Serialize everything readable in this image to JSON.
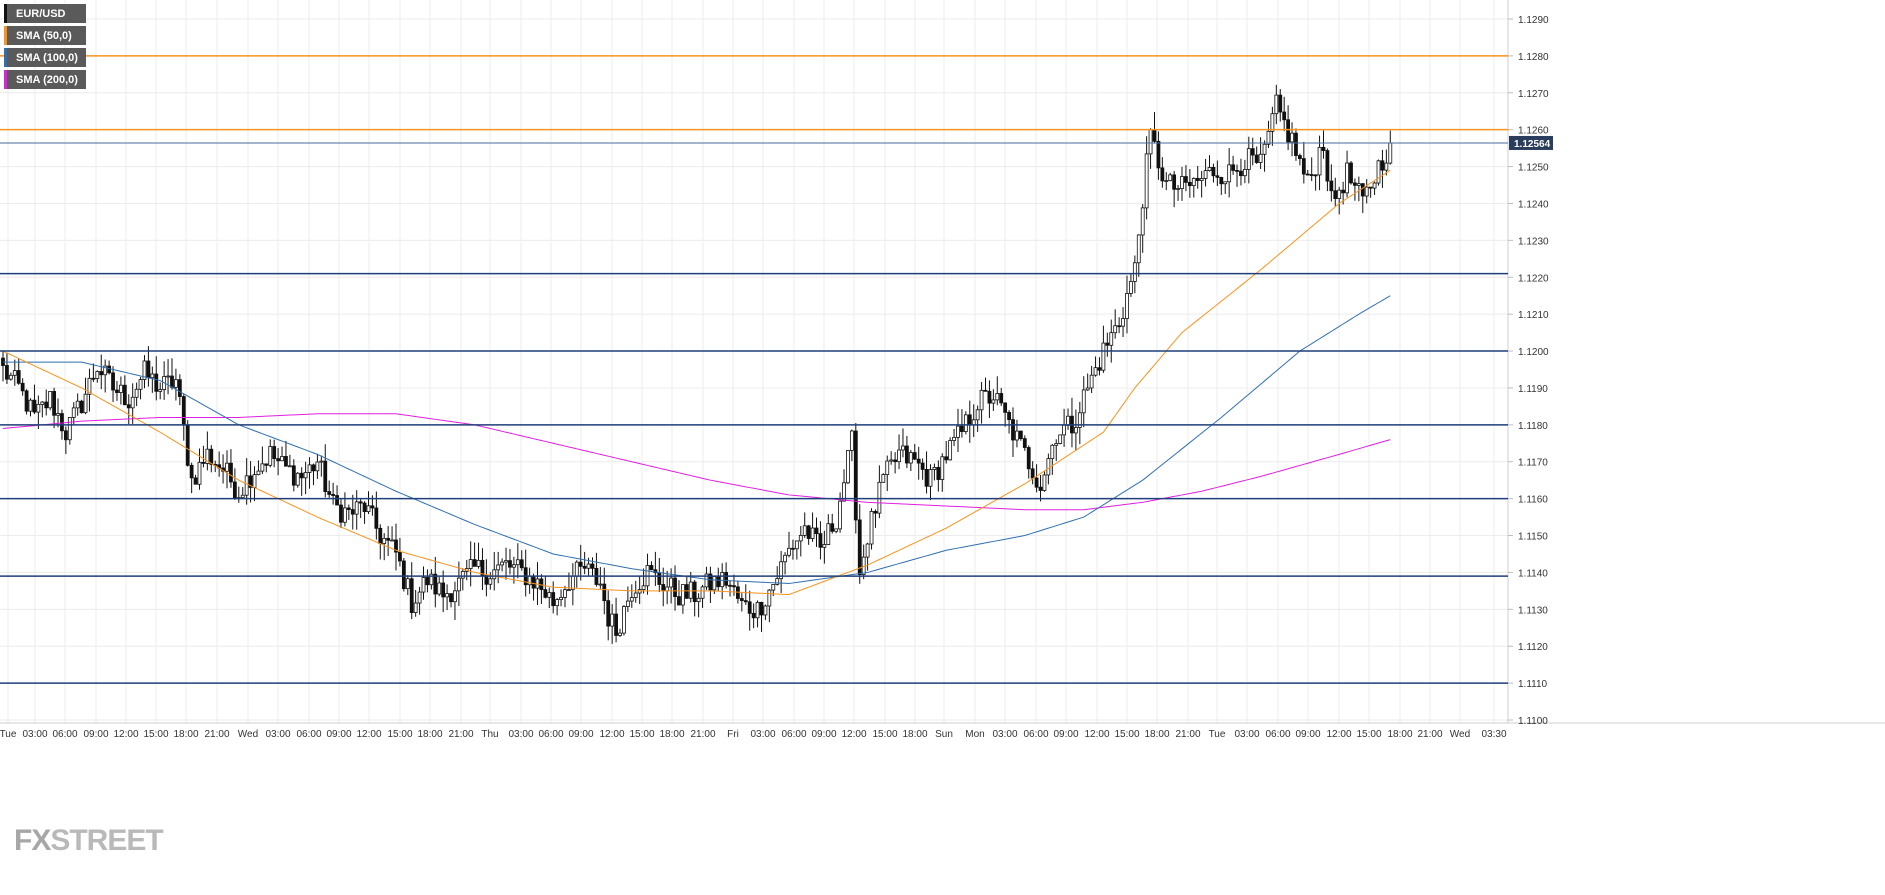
{
  "chart_data": {
    "type": "candlestick",
    "symbol": "EUR/USD",
    "y_range": [
      1.11,
      1.129
    ],
    "y_ticks": [
      "1.1100",
      "1.1110",
      "1.1120",
      "1.1130",
      "1.1140",
      "1.1150",
      "1.1160",
      "1.1170",
      "1.1180",
      "1.1190",
      "1.1200",
      "1.1210",
      "1.1220",
      "1.1230",
      "1.1240",
      "1.1250",
      "1.1260",
      "1.1270",
      "1.1280",
      "1.1290"
    ],
    "x_ticks": [
      "Tue",
      "03:00",
      "06:00",
      "09:00",
      "12:00",
      "15:00",
      "18:00",
      "21:00",
      "Wed",
      "03:00",
      "06:00",
      "09:00",
      "12:00",
      "15:00",
      "18:00",
      "21:00",
      "Thu",
      "03:00",
      "06:00",
      "09:00",
      "12:00",
      "15:00",
      "18:00",
      "21:00",
      "Fri",
      "03:00",
      "06:00",
      "09:00",
      "12:00",
      "15:00",
      "18:00",
      "Sun",
      "Mon",
      "03:00",
      "06:00",
      "09:00",
      "12:00",
      "15:00",
      "18:00",
      "21:00",
      "Tue",
      "03:00",
      "06:00",
      "09:00",
      "12:00",
      "15:00",
      "18:00",
      "21:00",
      "Wed",
      "03:30"
    ],
    "current_price_label": "1.12564",
    "current_price": 1.12564,
    "horizontal_levels": [
      {
        "price": 1.128,
        "color": "#f7931e"
      },
      {
        "price": 1.126,
        "color": "#f7931e"
      },
      {
        "price": 1.1221,
        "color": "#1f3f7a"
      },
      {
        "price": 1.12,
        "color": "#1f3f7a"
      },
      {
        "price": 1.118,
        "color": "#1f3f7a"
      },
      {
        "price": 1.116,
        "color": "#1f3f7a"
      },
      {
        "price": 1.1139,
        "color": "#1f3f7a"
      },
      {
        "price": 1.111,
        "color": "#1f3f7a"
      }
    ],
    "close_anchors": [
      [
        0,
        1.1195
      ],
      [
        4,
        1.119
      ],
      [
        8,
        1.1182
      ],
      [
        12,
        1.1187
      ],
      [
        16,
        1.1178
      ],
      [
        20,
        1.1186
      ],
      [
        24,
        1.1196
      ],
      [
        28,
        1.119
      ],
      [
        32,
        1.1187
      ],
      [
        36,
        1.1194
      ],
      [
        40,
        1.119
      ],
      [
        44,
        1.1192
      ],
      [
        48,
        1.1165
      ],
      [
        52,
        1.1172
      ],
      [
        56,
        1.1168
      ],
      [
        60,
        1.1162
      ],
      [
        64,
        1.1168
      ],
      [
        68,
        1.1172
      ],
      [
        72,
        1.1168
      ],
      [
        76,
        1.1166
      ],
      [
        80,
        1.117
      ],
      [
        84,
        1.1158
      ],
      [
        88,
        1.1156
      ],
      [
        92,
        1.1158
      ],
      [
        96,
        1.115
      ],
      [
        100,
        1.1145
      ],
      [
        104,
        1.1132
      ],
      [
        108,
        1.1138
      ],
      [
        112,
        1.1134
      ],
      [
        116,
        1.1137
      ],
      [
        120,
        1.1141
      ],
      [
        124,
        1.114
      ],
      [
        128,
        1.1142
      ],
      [
        132,
        1.114
      ],
      [
        136,
        1.1137
      ],
      [
        140,
        1.1132
      ],
      [
        144,
        1.1138
      ],
      [
        148,
        1.1141
      ],
      [
        152,
        1.1137
      ],
      [
        154,
        1.1128
      ],
      [
        156,
        1.1124
      ],
      [
        160,
        1.1136
      ],
      [
        164,
        1.114
      ],
      [
        168,
        1.1137
      ],
      [
        172,
        1.1134
      ],
      [
        176,
        1.1134
      ],
      [
        180,
        1.1137
      ],
      [
        184,
        1.1138
      ],
      [
        188,
        1.1131
      ],
      [
        192,
        1.113
      ],
      [
        196,
        1.1137
      ],
      [
        200,
        1.1146
      ],
      [
        204,
        1.1152
      ],
      [
        208,
        1.1146
      ],
      [
        212,
        1.1155
      ],
      [
        216,
        1.1175
      ],
      [
        218,
        1.114
      ],
      [
        220,
        1.115
      ],
      [
        224,
        1.1165
      ],
      [
        228,
        1.1172
      ],
      [
        232,
        1.117
      ],
      [
        236,
        1.1165
      ],
      [
        240,
        1.1172
      ],
      [
        244,
        1.1178
      ],
      [
        248,
        1.1186
      ],
      [
        252,
        1.1188
      ],
      [
        256,
        1.118
      ],
      [
        260,
        1.1172
      ],
      [
        264,
        1.1164
      ],
      [
        268,
        1.1178
      ],
      [
        272,
        1.118
      ],
      [
        276,
        1.119
      ],
      [
        280,
        1.12
      ],
      [
        284,
        1.1208
      ],
      [
        288,
        1.1222
      ],
      [
        290,
        1.1242
      ],
      [
        292,
        1.1258
      ],
      [
        296,
        1.1245
      ],
      [
        300,
        1.1244
      ],
      [
        304,
        1.1246
      ],
      [
        308,
        1.1249
      ],
      [
        312,
        1.1248
      ],
      [
        316,
        1.1252
      ],
      [
        320,
        1.125
      ],
      [
        324,
        1.1266
      ],
      [
        328,
        1.1257
      ],
      [
        332,
        1.1245
      ],
      [
        336,
        1.1257
      ],
      [
        338,
        1.124
      ],
      [
        342,
        1.1248
      ],
      [
        346,
        1.124
      ],
      [
        350,
        1.125
      ],
      [
        353,
        1.12564
      ]
    ],
    "sma_50": [
      [
        0,
        1.12
      ],
      [
        20,
        1.119
      ],
      [
        40,
        1.1178
      ],
      [
        60,
        1.1165
      ],
      [
        80,
        1.1155
      ],
      [
        100,
        1.1146
      ],
      [
        120,
        1.114
      ],
      [
        140,
        1.1136
      ],
      [
        160,
        1.1135
      ],
      [
        180,
        1.1135
      ],
      [
        200,
        1.1134
      ],
      [
        210,
        1.1138
      ],
      [
        220,
        1.1142
      ],
      [
        240,
        1.1152
      ],
      [
        260,
        1.1164
      ],
      [
        280,
        1.1178
      ],
      [
        288,
        1.119
      ],
      [
        300,
        1.1205
      ],
      [
        320,
        1.1222
      ],
      [
        340,
        1.124
      ],
      [
        353,
        1.1249
      ]
    ],
    "sma_100": [
      [
        0,
        1.1197
      ],
      [
        20,
        1.1197
      ],
      [
        40,
        1.1192
      ],
      [
        60,
        1.118
      ],
      [
        80,
        1.1172
      ],
      [
        100,
        1.1162
      ],
      [
        120,
        1.1153
      ],
      [
        140,
        1.1145
      ],
      [
        160,
        1.1141
      ],
      [
        180,
        1.1138
      ],
      [
        200,
        1.1137
      ],
      [
        220,
        1.114
      ],
      [
        240,
        1.1146
      ],
      [
        260,
        1.115
      ],
      [
        275,
        1.1155
      ],
      [
        290,
        1.1165
      ],
      [
        310,
        1.1182
      ],
      [
        330,
        1.12
      ],
      [
        345,
        1.121
      ],
      [
        353,
        1.1215
      ]
    ],
    "sma_200": [
      [
        0,
        1.1179
      ],
      [
        20,
        1.1181
      ],
      [
        40,
        1.1182
      ],
      [
        60,
        1.1182
      ],
      [
        80,
        1.1183
      ],
      [
        100,
        1.1183
      ],
      [
        120,
        1.118
      ],
      [
        140,
        1.1175
      ],
      [
        160,
        1.117
      ],
      [
        180,
        1.1165
      ],
      [
        200,
        1.1161
      ],
      [
        220,
        1.1159
      ],
      [
        240,
        1.1158
      ],
      [
        260,
        1.1157
      ],
      [
        275,
        1.1157
      ],
      [
        290,
        1.1159
      ],
      [
        305,
        1.1162
      ],
      [
        320,
        1.1166
      ],
      [
        340,
        1.1172
      ],
      [
        353,
        1.1176
      ]
    ]
  },
  "legend": [
    {
      "label": "EUR/USD",
      "color": "#111111"
    },
    {
      "label": "SMA (50,0)",
      "color": "#f7931e"
    },
    {
      "label": "SMA (100,0)",
      "color": "#2f6fb0"
    },
    {
      "label": "SMA (200,0)",
      "color": "#e020e0"
    }
  ],
  "logo": {
    "fx": "FX",
    "street": "STREET"
  }
}
